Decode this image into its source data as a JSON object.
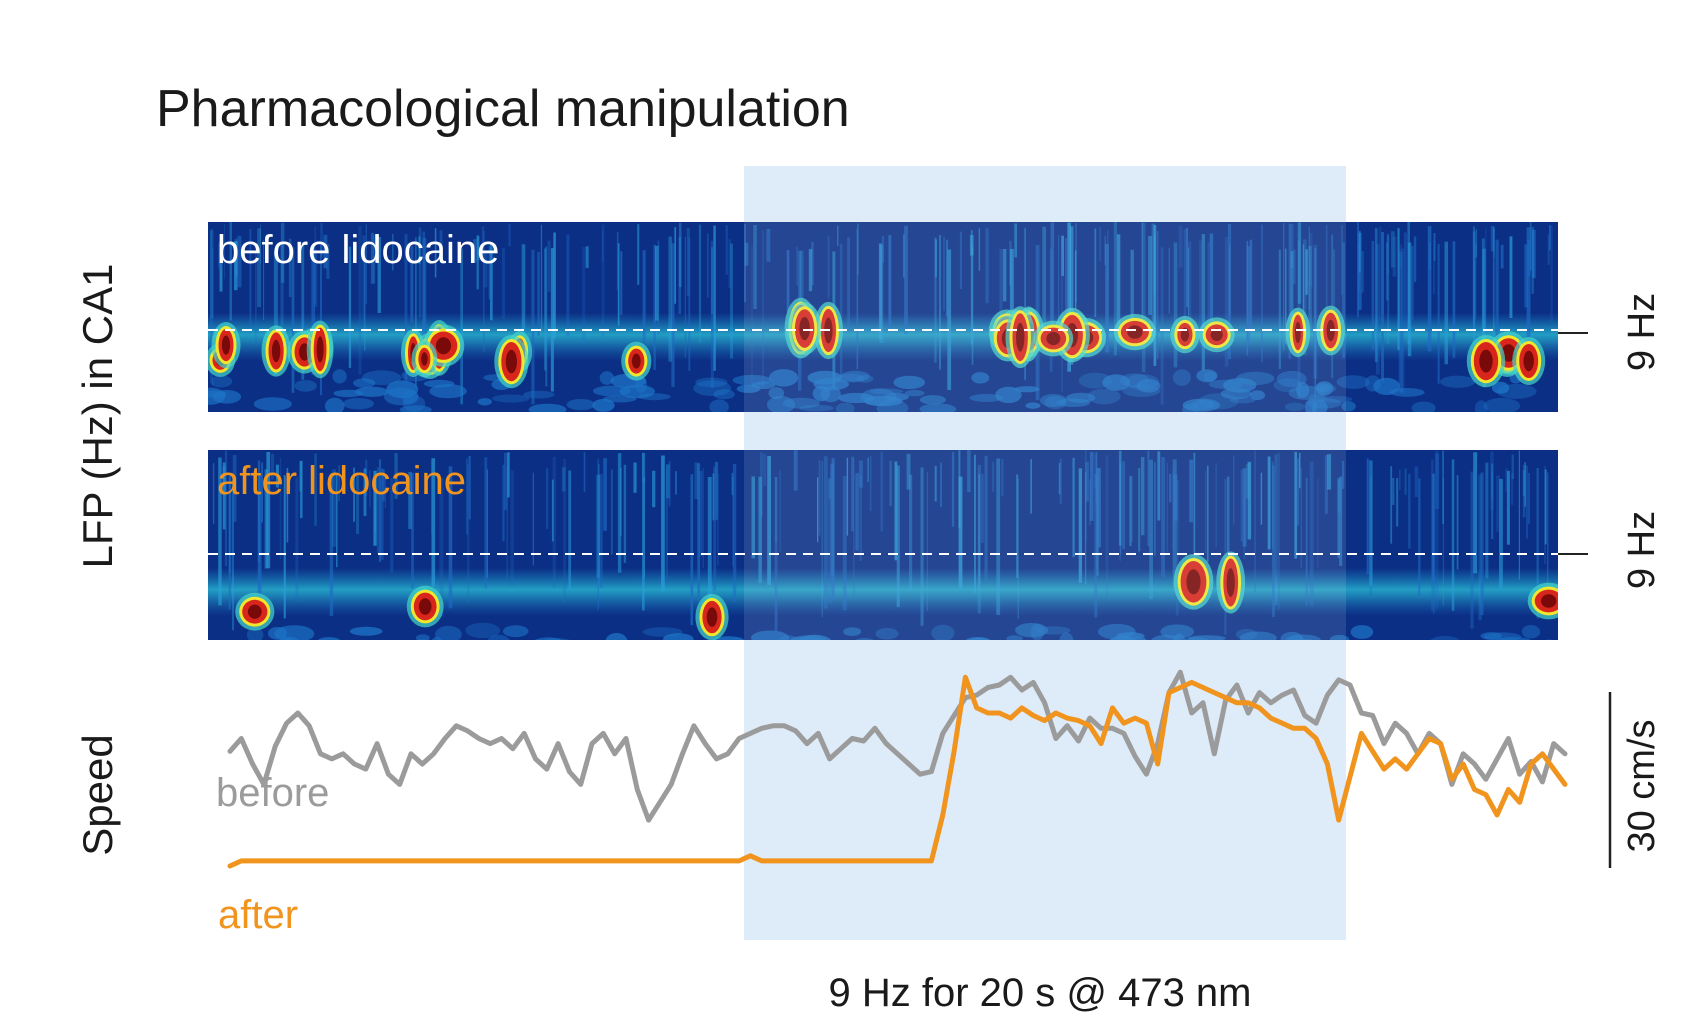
{
  "title": "Pharmacological manipulation",
  "stim_label": "9 Hz for 20 s @ 473 nm",
  "colors": {
    "stim_bg": "#deebf9",
    "before": "#9b9b9b",
    "after": "#f0941e",
    "dash": "#ffffff",
    "axis": "#222222",
    "text": "#1a1a1a"
  },
  "chart_data": {
    "type": "heatmap",
    "panels": [
      {
        "label": "before lidocaine",
        "label_color": "#ffffff",
        "marker": "9 Hz"
      },
      {
        "label": "after lidocaine",
        "label_color": "#f0941e",
        "marker": "9 Hz"
      }
    ],
    "ylabel_top": "LFP (Hz) in CA1",
    "ylabel_bottom": "Speed",
    "speed_scale_label": "30 cm/s",
    "speed_series": [
      {
        "name": "before",
        "values": [
          45,
          50,
          40,
          32,
          47,
          56,
          60,
          55,
          44,
          42,
          44,
          40,
          38,
          48,
          36,
          32,
          44,
          40,
          44,
          50,
          55,
          53,
          50,
          48,
          50,
          46,
          52,
          42,
          38,
          48,
          37,
          32,
          48,
          52,
          44,
          50,
          30,
          18,
          25,
          32,
          44,
          55,
          48,
          42,
          44,
          50,
          52,
          54,
          55,
          55,
          53,
          48,
          52,
          42,
          46,
          50,
          49,
          54,
          48,
          44,
          40,
          36,
          37,
          52,
          59,
          66,
          67,
          70,
          71,
          74,
          69,
          72,
          64,
          50,
          55,
          49,
          58,
          54,
          54,
          52,
          43,
          36,
          48,
          68,
          76,
          60,
          64,
          44,
          65,
          71,
          60,
          68,
          64,
          67,
          69,
          59,
          56,
          67,
          73,
          71,
          60,
          59,
          48,
          56,
          52,
          44,
          52,
          48,
          32,
          44,
          40,
          34,
          42,
          50,
          36,
          41,
          33,
          48,
          44
        ]
      },
      {
        "name": "after",
        "values": [
          0,
          2,
          2,
          2,
          2,
          2,
          2,
          2,
          2,
          2,
          2,
          2,
          2,
          2,
          2,
          2,
          2,
          2,
          2,
          2,
          2,
          2,
          2,
          2,
          2,
          2,
          2,
          2,
          2,
          2,
          2,
          2,
          2,
          2,
          2,
          2,
          2,
          2,
          2,
          2,
          2,
          2,
          2,
          2,
          2,
          2,
          4,
          2,
          2,
          2,
          2,
          2,
          2,
          2,
          2,
          2,
          2,
          2,
          2,
          2,
          2,
          2,
          2,
          20,
          45,
          74,
          62,
          60,
          60,
          58,
          62,
          59,
          57,
          60,
          58,
          57,
          55,
          48,
          62,
          56,
          58,
          56,
          40,
          68,
          70,
          72,
          70,
          68,
          66,
          64,
          64,
          62,
          58,
          56,
          54,
          54,
          50,
          40,
          18,
          35,
          52,
          45,
          38,
          42,
          38,
          44,
          50,
          48,
          34,
          40,
          30,
          28,
          20,
          30,
          25,
          40,
          44,
          38,
          32
        ]
      }
    ],
    "stim_window_fraction": [
      0.395,
      0.84
    ]
  }
}
